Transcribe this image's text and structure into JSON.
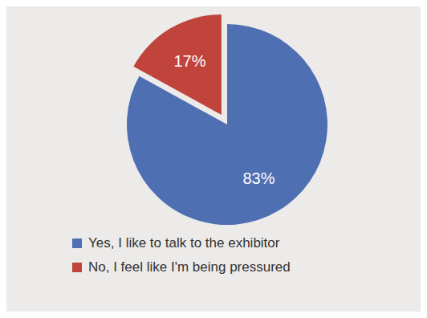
{
  "chart_data": {
    "type": "pie",
    "categories": [
      "Yes, I like to talk to the exhibitor",
      "No, I feel like I'm being pressured"
    ],
    "values": [
      83,
      17
    ],
    "value_labels": [
      "83%",
      "17%"
    ],
    "colors": [
      "#4f6fb3",
      "#c0433c"
    ],
    "data_labels": true,
    "legend": "bottom"
  }
}
